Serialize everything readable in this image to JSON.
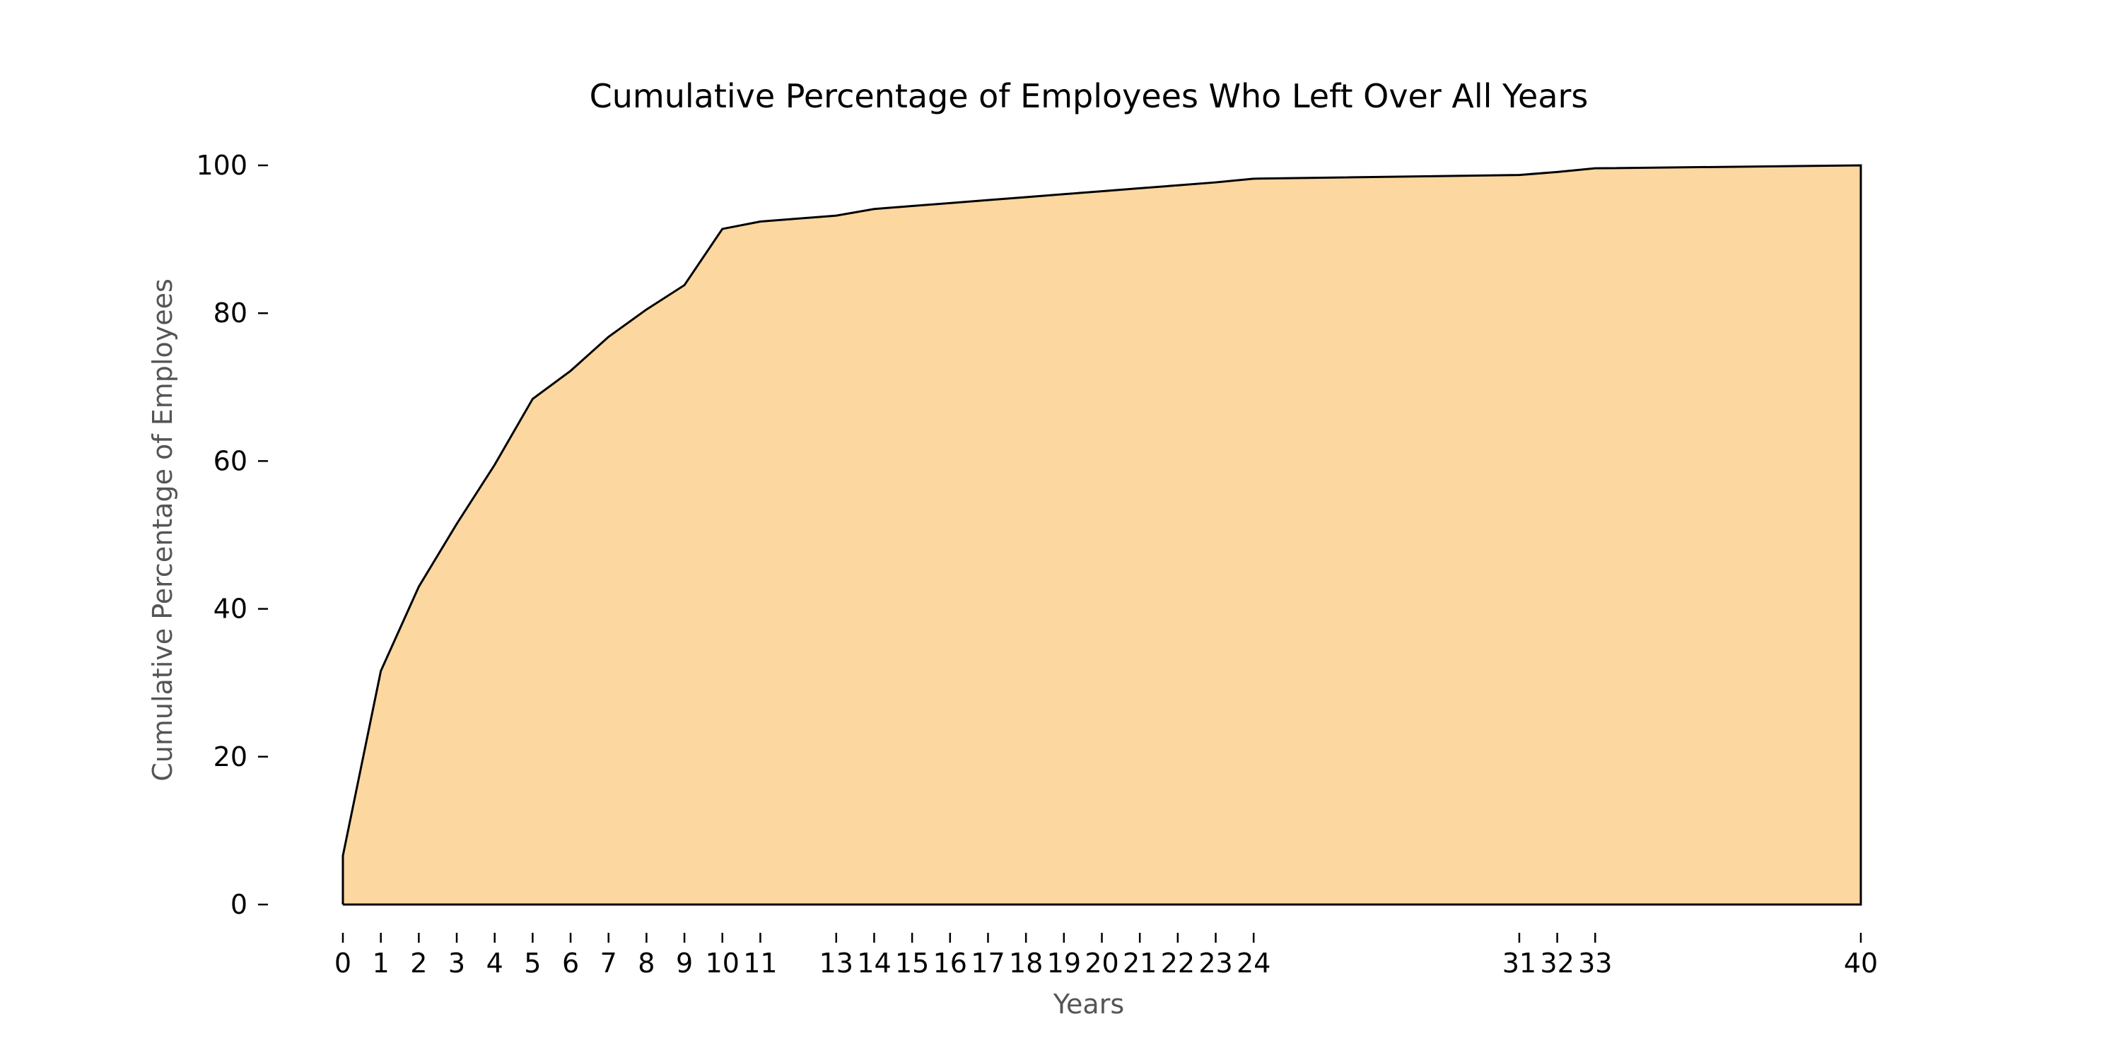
{
  "chart_data": {
    "type": "area",
    "title": "Cumulative Percentage of Employees Who Left Over All Years",
    "xlabel": "Years",
    "ylabel": "Cumulative Percentage of Employees",
    "x": [
      0,
      1,
      2,
      3,
      4,
      5,
      6,
      7,
      8,
      9,
      10,
      11,
      13,
      14,
      15,
      16,
      17,
      18,
      19,
      20,
      21,
      22,
      23,
      24,
      31,
      32,
      33,
      40
    ],
    "series": [
      {
        "values": [
          6.6,
          31.6,
          43.0,
          51.5,
          59.5,
          68.4,
          72.2,
          76.8,
          80.5,
          83.8,
          91.4,
          92.4,
          93.2,
          94.1,
          94.5,
          94.9,
          95.3,
          95.7,
          96.1,
          96.5,
          96.9,
          97.3,
          97.7,
          98.2,
          98.7,
          99.1,
          99.6,
          100.0
        ]
      }
    ],
    "xticks": [
      "0",
      "1",
      "2",
      "3",
      "4",
      "5",
      "6",
      "7",
      "8",
      "9",
      "10",
      "11",
      "13",
      "14",
      "15",
      "16",
      "17",
      "18",
      "19",
      "20",
      "21",
      "22",
      "23",
      "24",
      "31",
      "32",
      "33",
      "40"
    ],
    "yticks": [
      "0",
      "20",
      "40",
      "60",
      "80",
      "100"
    ],
    "xlim": [
      0,
      40
    ],
    "ylim": [
      0,
      100
    ],
    "grid": false,
    "legend": "none",
    "fill_color": "#fdd7a0",
    "line_color": "#000000"
  }
}
